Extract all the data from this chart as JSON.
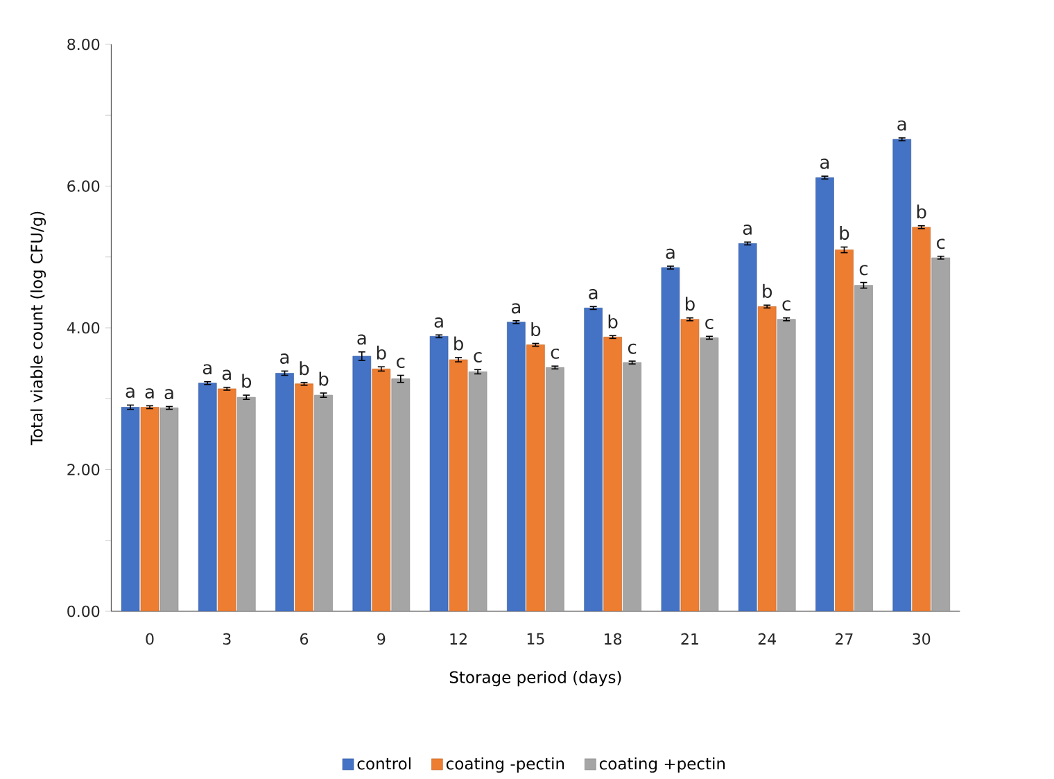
{
  "chart_data": {
    "type": "bar",
    "xlabel": "Storage period (days)",
    "ylabel": "Total viable count (log CFU/g)",
    "categories": [
      "0",
      "3",
      "6",
      "9",
      "12",
      "15",
      "18",
      "21",
      "24",
      "27",
      "30"
    ],
    "series": [
      {
        "name": "control",
        "color": "#4472c4",
        "values": [
          2.88,
          3.22,
          3.36,
          3.6,
          3.88,
          4.08,
          4.28,
          4.85,
          5.19,
          6.12,
          6.66
        ],
        "errors": [
          0.03,
          0.02,
          0.03,
          0.06,
          0.02,
          0.02,
          0.02,
          0.02,
          0.02,
          0.02,
          0.02
        ],
        "value_labels": [
          "a",
          "a",
          "a",
          "a",
          "a",
          "a",
          "a",
          "a",
          "a",
          "a",
          "a"
        ]
      },
      {
        "name": "coating -pectin",
        "color": "#ed7d31",
        "values": [
          2.88,
          3.14,
          3.21,
          3.42,
          3.55,
          3.76,
          3.87,
          4.12,
          4.3,
          5.1,
          5.42
        ],
        "errors": [
          0.02,
          0.02,
          0.02,
          0.03,
          0.03,
          0.02,
          0.02,
          0.02,
          0.02,
          0.04,
          0.02
        ],
        "value_labels": [
          "a",
          "a",
          "b",
          "b",
          "b",
          "b",
          "b",
          "b",
          "b",
          "b",
          "b"
        ]
      },
      {
        "name": "coating +pectin",
        "color": "#a5a5a5",
        "values": [
          2.87,
          3.02,
          3.05,
          3.28,
          3.38,
          3.44,
          3.51,
          3.86,
          4.12,
          4.6,
          4.99
        ],
        "errors": [
          0.02,
          0.03,
          0.03,
          0.05,
          0.03,
          0.02,
          0.02,
          0.02,
          0.02,
          0.04,
          0.02
        ],
        "value_labels": [
          "a",
          "b",
          "b",
          "c",
          "c",
          "c",
          "c",
          "c",
          "c",
          "c",
          "c"
        ]
      }
    ],
    "ylim": [
      0,
      8
    ],
    "yticks": [
      {
        "value": 0,
        "label": "0.00"
      },
      {
        "value": 1,
        "label": null
      },
      {
        "value": 2,
        "label": "2.00"
      },
      {
        "value": 3,
        "label": null
      },
      {
        "value": 4,
        "label": "4.00"
      },
      {
        "value": 5,
        "label": null
      },
      {
        "value": 6,
        "label": "6.00"
      },
      {
        "value": 7,
        "label": null
      },
      {
        "value": 8,
        "label": "8.00"
      }
    ],
    "grid": false,
    "legend": "bottom"
  }
}
